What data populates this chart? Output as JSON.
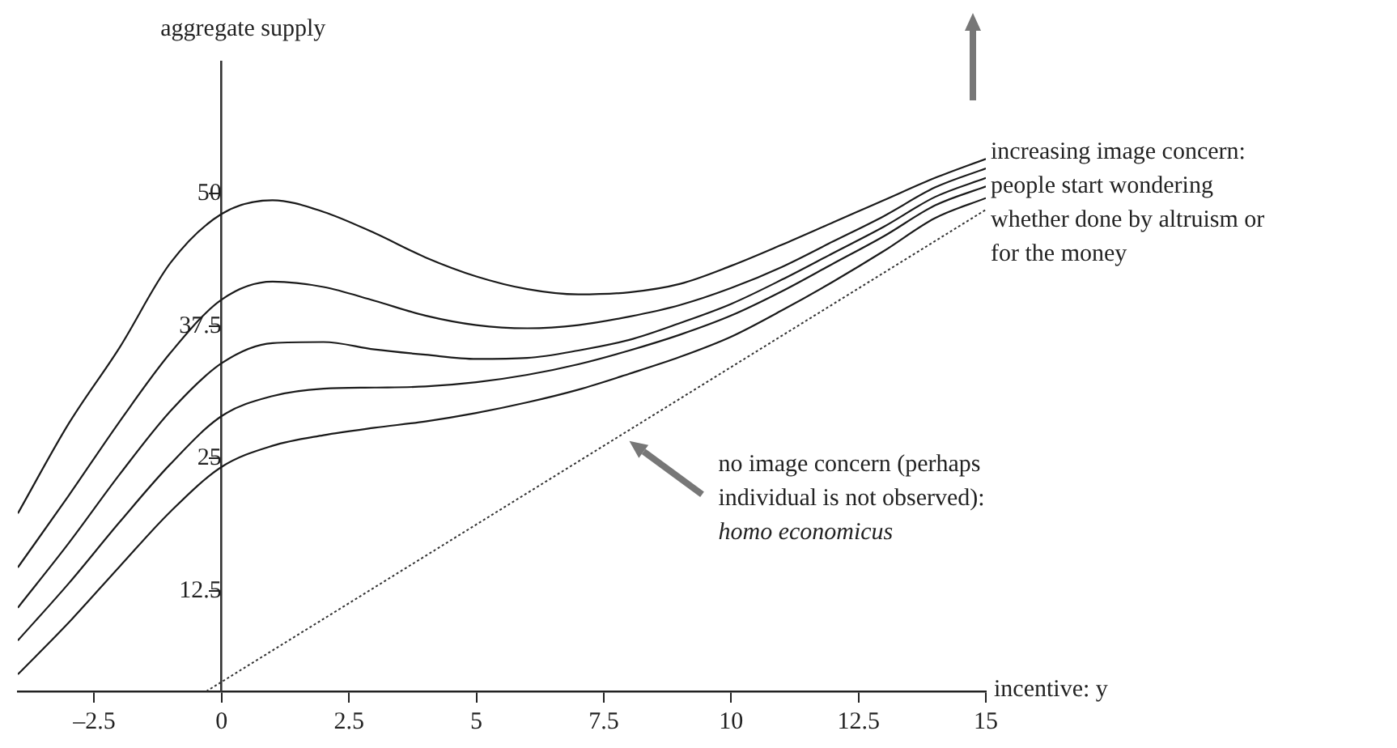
{
  "chart_data": {
    "type": "line",
    "xlabel": "incentive: y",
    "ylabel": "aggregate supply",
    "xlim": [
      -4,
      15
    ],
    "ylim": [
      3,
      62.5
    ],
    "xticks": [
      {
        "value": -2.5,
        "label": "–2.5"
      },
      0,
      2.5,
      5,
      7.5,
      10,
      12.5,
      15
    ],
    "yticks": [
      12.5,
      25,
      37.5,
      50
    ],
    "grid": false,
    "legend": false,
    "marker": "none",
    "x": [
      -4,
      -3,
      -2,
      -1,
      0,
      1,
      2,
      3,
      4,
      5,
      6,
      7,
      8,
      9,
      10,
      11,
      12,
      13,
      14,
      15
    ],
    "series": [
      {
        "color": "#1a1a1a",
        "line_style": "solid",
        "values": [
          19.8,
          28.3,
          35.5,
          43.5,
          48.1,
          49.4,
          48.3,
          46.3,
          44.0,
          42.2,
          41.0,
          40.5,
          40.7,
          41.5,
          43.2,
          45.2,
          47.3,
          49.4,
          51.5,
          53.3
        ]
      },
      {
        "color": "#1a1a1a",
        "line_style": "solid",
        "values": [
          14.7,
          21.5,
          28.5,
          35.0,
          40.0,
          41.7,
          41.2,
          39.9,
          38.5,
          37.6,
          37.3,
          37.6,
          38.4,
          39.5,
          41.1,
          43.1,
          45.5,
          47.9,
          50.6,
          52.4
        ]
      },
      {
        "color": "#1a1a1a",
        "line_style": "solid",
        "values": [
          10.9,
          17.0,
          23.5,
          29.5,
          34.0,
          35.9,
          36.0,
          35.3,
          34.8,
          34.4,
          34.5,
          35.2,
          36.2,
          37.8,
          39.6,
          41.9,
          44.4,
          46.9,
          49.7,
          51.5
        ]
      },
      {
        "color": "#1a1a1a",
        "line_style": "solid",
        "values": [
          7.8,
          13.2,
          19.0,
          24.5,
          29.0,
          30.9,
          31.6,
          31.7,
          31.8,
          32.2,
          32.9,
          33.9,
          35.2,
          36.7,
          38.5,
          40.8,
          43.4,
          46.0,
          48.9,
          50.7
        ]
      },
      {
        "color": "#1a1a1a",
        "line_style": "solid",
        "values": [
          4.6,
          9.5,
          14.8,
          20.0,
          24.2,
          26.2,
          27.2,
          27.9,
          28.5,
          29.3,
          30.3,
          31.5,
          33.0,
          34.6,
          36.5,
          39.0,
          41.7,
          44.6,
          47.7,
          49.6
        ]
      },
      {
        "color": "#333333",
        "line_style": "dotted",
        "x": [
          -0.3,
          15
        ],
        "values": [
          3,
          48.5
        ]
      }
    ],
    "annotations": [
      "increasing image concern:\npeople start wondering\nwhether done by altruism or\nfor the money",
      "no image concern (perhaps\nindividual is not observed):",
      "homo economicus"
    ]
  }
}
